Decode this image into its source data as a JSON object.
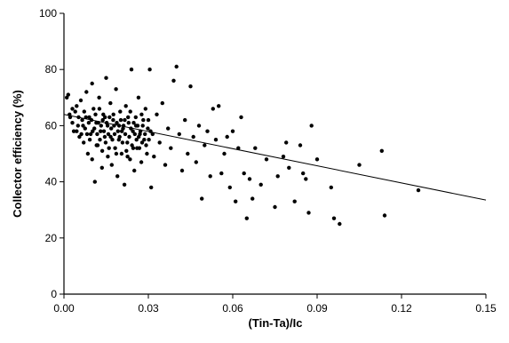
{
  "chart_data": {
    "type": "scatter",
    "title": "",
    "xlabel": "(Tin-Ta)/Ic",
    "ylabel": "Collector efficiency (%)",
    "xlim": [
      0,
      0.15
    ],
    "ylim": [
      0,
      100
    ],
    "x_ticks": [
      "0.00",
      "0.03",
      "0.06",
      "0.09",
      "0.12",
      "0.15"
    ],
    "y_ticks": [
      "0",
      "20",
      "40",
      "60",
      "80",
      "100"
    ],
    "x_tick_values": [
      0,
      0.03,
      0.06,
      0.09,
      0.12,
      0.15
    ],
    "y_tick_values": [
      0,
      20,
      40,
      60,
      80,
      100
    ],
    "grid": false,
    "legend": "none",
    "marker_color": "#000000",
    "series": [
      {
        "points": [
          [
            0.001,
            70.0
          ],
          [
            0.0015,
            71.0
          ],
          [
            0.002,
            64.0
          ],
          [
            0.0022,
            63.0
          ],
          [
            0.003,
            61.0
          ],
          [
            0.0035,
            58.0
          ],
          [
            0.004,
            65.0
          ],
          [
            0.0045,
            67.0
          ],
          [
            0.005,
            60.0
          ],
          [
            0.0055,
            56.0
          ],
          [
            0.006,
            69.0
          ],
          [
            0.0065,
            62.0
          ],
          [
            0.007,
            54.0
          ],
          [
            0.0075,
            59.0
          ],
          [
            0.008,
            72.0
          ],
          [
            0.0085,
            50.0
          ],
          [
            0.009,
            63.0
          ],
          [
            0.0095,
            57.0
          ],
          [
            0.01,
            75.0
          ],
          [
            0.01,
            48.0
          ],
          [
            0.0105,
            66.0
          ],
          [
            0.011,
            40.0
          ],
          [
            0.0115,
            61.0
          ],
          [
            0.012,
            53.0
          ],
          [
            0.0125,
            70.0
          ],
          [
            0.013,
            58.0
          ],
          [
            0.0135,
            45.0
          ],
          [
            0.014,
            64.0
          ],
          [
            0.0145,
            56.0
          ],
          [
            0.015,
            77.0
          ],
          [
            0.0155,
            60.0
          ],
          [
            0.016,
            52.0
          ],
          [
            0.0165,
            68.0
          ],
          [
            0.017,
            46.0
          ],
          [
            0.0175,
            62.0
          ],
          [
            0.018,
            57.0
          ],
          [
            0.0185,
            73.0
          ],
          [
            0.019,
            42.0
          ],
          [
            0.0195,
            55.0
          ],
          [
            0.02,
            65.0
          ],
          [
            0.0205,
            50.0
          ],
          [
            0.021,
            59.0
          ],
          [
            0.0215,
            39.0
          ],
          [
            0.022,
            67.0
          ],
          [
            0.0225,
            54.0
          ],
          [
            0.023,
            61.0
          ],
          [
            0.0235,
            48.0
          ],
          [
            0.024,
            80.0
          ],
          [
            0.0245,
            58.0
          ],
          [
            0.025,
            44.0
          ],
          [
            0.0255,
            63.0
          ],
          [
            0.026,
            52.0
          ],
          [
            0.0265,
            70.0
          ],
          [
            0.027,
            57.0
          ],
          [
            0.0275,
            47.0
          ],
          [
            0.028,
            60.0
          ],
          [
            0.0285,
            55.0
          ],
          [
            0.029,
            66.0
          ],
          [
            0.0295,
            50.0
          ],
          [
            0.03,
            62.0
          ],
          [
            0.0305,
            80.0
          ],
          [
            0.031,
            38.0
          ],
          [
            0.0315,
            57.0
          ],
          [
            0.032,
            49.0
          ],
          [
            0.033,
            64.0
          ],
          [
            0.034,
            54.0
          ],
          [
            0.035,
            68.0
          ],
          [
            0.036,
            46.0
          ],
          [
            0.037,
            59.0
          ],
          [
            0.038,
            52.0
          ],
          [
            0.039,
            76.0
          ],
          [
            0.04,
            81.0
          ],
          [
            0.041,
            57.0
          ],
          [
            0.042,
            44.0
          ],
          [
            0.043,
            62.0
          ],
          [
            0.044,
            50.0
          ],
          [
            0.045,
            74.0
          ],
          [
            0.046,
            56.0
          ],
          [
            0.047,
            47.0
          ],
          [
            0.048,
            60.0
          ],
          [
            0.049,
            34.0
          ],
          [
            0.05,
            53.0
          ],
          [
            0.051,
            58.0
          ],
          [
            0.052,
            42.0
          ],
          [
            0.053,
            66.0
          ],
          [
            0.054,
            55.0
          ],
          [
            0.055,
            67.0
          ],
          [
            0.056,
            43.0
          ],
          [
            0.057,
            50.0
          ],
          [
            0.058,
            56.0
          ],
          [
            0.059,
            38.0
          ],
          [
            0.06,
            58.0
          ],
          [
            0.061,
            33.0
          ],
          [
            0.062,
            52.0
          ],
          [
            0.063,
            63.0
          ],
          [
            0.064,
            43.0
          ],
          [
            0.065,
            27.0
          ],
          [
            0.066,
            41.0
          ],
          [
            0.067,
            34.0
          ],
          [
            0.068,
            52.0
          ],
          [
            0.07,
            39.0
          ],
          [
            0.072,
            48.0
          ],
          [
            0.075,
            31.0
          ],
          [
            0.076,
            42.0
          ],
          [
            0.078,
            49.0
          ],
          [
            0.079,
            54.0
          ],
          [
            0.08,
            45.0
          ],
          [
            0.082,
            33.0
          ],
          [
            0.084,
            53.0
          ],
          [
            0.085,
            43.0
          ],
          [
            0.086,
            41.0
          ],
          [
            0.087,
            29.0
          ],
          [
            0.088,
            60.0
          ],
          [
            0.09,
            48.0
          ],
          [
            0.095,
            38.0
          ],
          [
            0.096,
            27.0
          ],
          [
            0.098,
            25.0
          ],
          [
            0.105,
            46.0
          ],
          [
            0.113,
            51.0
          ],
          [
            0.114,
            28.0
          ],
          [
            0.126,
            37.0
          ],
          [
            0.003,
            66.0
          ],
          [
            0.0045,
            58.0
          ],
          [
            0.0052,
            63.0
          ],
          [
            0.0068,
            60.0
          ],
          [
            0.0072,
            65.0
          ],
          [
            0.0082,
            57.0
          ],
          [
            0.0088,
            61.0
          ],
          [
            0.0092,
            55.0
          ],
          [
            0.0098,
            62.0
          ],
          [
            0.0108,
            59.0
          ],
          [
            0.0112,
            64.0
          ],
          [
            0.0118,
            57.0
          ],
          [
            0.0122,
            61.0
          ],
          [
            0.0128,
            55.0
          ],
          [
            0.0132,
            60.0
          ],
          [
            0.0138,
            62.0
          ],
          [
            0.0142,
            58.0
          ],
          [
            0.0148,
            54.0
          ],
          [
            0.0152,
            61.0
          ],
          [
            0.0158,
            57.0
          ],
          [
            0.0162,
            63.0
          ],
          [
            0.0168,
            59.0
          ],
          [
            0.0172,
            55.0
          ],
          [
            0.0178,
            60.0
          ],
          [
            0.0182,
            52.0
          ],
          [
            0.0188,
            61.0
          ],
          [
            0.0192,
            58.0
          ],
          [
            0.0198,
            56.0
          ],
          [
            0.0202,
            62.0
          ],
          [
            0.0208,
            54.0
          ],
          [
            0.0212,
            60.0
          ],
          [
            0.0218,
            57.0
          ],
          [
            0.0222,
            51.0
          ],
          [
            0.0228,
            63.0
          ],
          [
            0.0232,
            56.0
          ],
          [
            0.0238,
            59.0
          ],
          [
            0.0242,
            53.0
          ],
          [
            0.0248,
            61.0
          ],
          [
            0.0252,
            57.0
          ],
          [
            0.0258,
            55.0
          ],
          [
            0.0262,
            60.0
          ],
          [
            0.0268,
            52.0
          ],
          [
            0.0272,
            58.0
          ],
          [
            0.0278,
            54.0
          ],
          [
            0.0282,
            62.0
          ],
          [
            0.0288,
            57.0
          ],
          [
            0.0292,
            53.0
          ],
          [
            0.0298,
            59.0
          ],
          [
            0.0302,
            55.0
          ],
          [
            0.0308,
            58.0
          ],
          [
            0.0062,
            57.0
          ],
          [
            0.0078,
            63.0
          ],
          [
            0.0102,
            58.0
          ],
          [
            0.0116,
            53.0
          ],
          [
            0.0126,
            66.0
          ],
          [
            0.0136,
            51.0
          ],
          [
            0.0146,
            63.0
          ],
          [
            0.0156,
            49.0
          ],
          [
            0.0166,
            56.0
          ],
          [
            0.0176,
            64.0
          ],
          [
            0.0186,
            50.0
          ],
          [
            0.0196,
            60.0
          ],
          [
            0.0206,
            58.0
          ],
          [
            0.0216,
            62.0
          ],
          [
            0.0226,
            49.0
          ],
          [
            0.0236,
            65.0
          ],
          [
            0.0246,
            52.0
          ],
          [
            0.0256,
            60.0
          ],
          [
            0.0266,
            56.0
          ],
          [
            0.0276,
            64.0
          ]
        ]
      }
    ],
    "trendline": {
      "x": [
        0,
        0.15
      ],
      "y": [
        64,
        33.5
      ]
    }
  }
}
